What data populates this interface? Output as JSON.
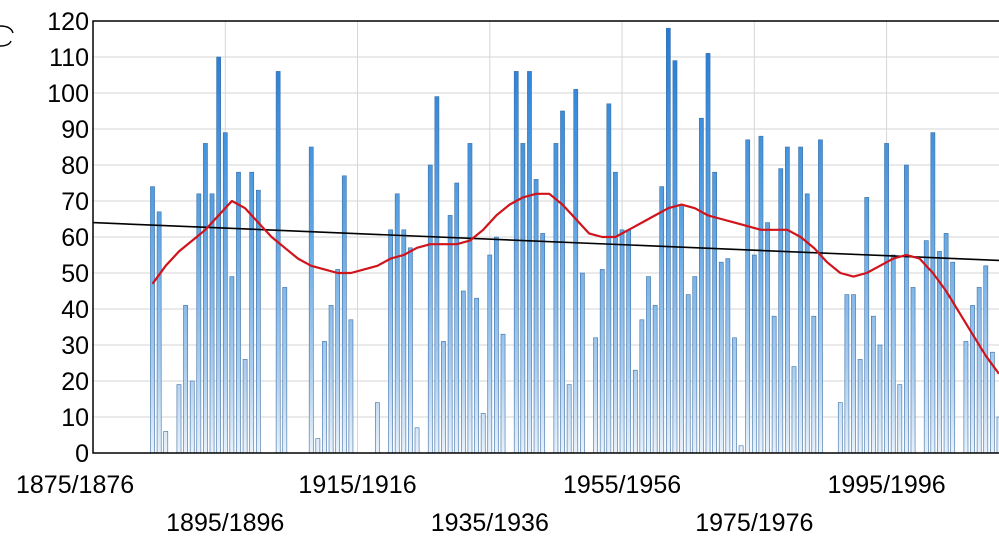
{
  "chart_data": {
    "type": "bar",
    "title": "",
    "xlabel": "",
    "ylabel": "",
    "ylim": [
      0,
      120
    ],
    "xlim": [
      1875,
      2012
    ],
    "grid": true,
    "yticks": [
      "0",
      "10",
      "20",
      "30",
      "40",
      "50",
      "60",
      "70",
      "80",
      "90",
      "100",
      "110",
      "120"
    ],
    "xticks": [
      {
        "year": 1875,
        "label": "1875/1876",
        "row": "upper"
      },
      {
        "year": 1895,
        "label": "1895/1896",
        "row": "lower"
      },
      {
        "year": 1915,
        "label": "1915/1916",
        "row": "upper"
      },
      {
        "year": 1935,
        "label": "1935/1936",
        "row": "lower"
      },
      {
        "year": 1955,
        "label": "1955/1956",
        "row": "upper"
      },
      {
        "year": 1975,
        "label": "1975/1976",
        "row": "lower"
      },
      {
        "year": 1995,
        "label": "1995/1996",
        "row": "upper"
      }
    ],
    "bars": {
      "start_season": 1884,
      "values": [
        74,
        67,
        6,
        0,
        19,
        41,
        20,
        72,
        86,
        72,
        110,
        89,
        49,
        78,
        26,
        78,
        73,
        0,
        0,
        106,
        46,
        0,
        0,
        0,
        85,
        4,
        31,
        41,
        51,
        77,
        37,
        0,
        0,
        0,
        14,
        0,
        62,
        72,
        62,
        57,
        7,
        0,
        80,
        99,
        31,
        66,
        75,
        45,
        86,
        43,
        11,
        55,
        60,
        33,
        0,
        106,
        86,
        106,
        76,
        61,
        0,
        86,
        95,
        19,
        101,
        50,
        0,
        32,
        51,
        97,
        78,
        62,
        62,
        23,
        37,
        49,
        41,
        74,
        118,
        109,
        69,
        44,
        49,
        93,
        111,
        78,
        53,
        54,
        32,
        2,
        87,
        55,
        88,
        64,
        38,
        79,
        85,
        24,
        85,
        72,
        38,
        87,
        0,
        0,
        14,
        44,
        44,
        26,
        71,
        38,
        30,
        86,
        55,
        19,
        80,
        46,
        0,
        59,
        89,
        56,
        61,
        53,
        0,
        31,
        41,
        46,
        52,
        28,
        10
      ]
    },
    "series": [
      {
        "type": "line",
        "color": "#d0141c",
        "x": [
          1884,
          1886,
          1888,
          1890,
          1892,
          1894,
          1896,
          1898,
          1900,
          1902,
          1904,
          1906,
          1908,
          1910,
          1912,
          1914,
          1916,
          1918,
          1920,
          1922,
          1924,
          1926,
          1928,
          1930,
          1932,
          1934,
          1936,
          1938,
          1940,
          1942,
          1944,
          1946,
          1948,
          1950,
          1952,
          1954,
          1956,
          1958,
          1960,
          1962,
          1964,
          1966,
          1968,
          1970,
          1972,
          1974,
          1976,
          1978,
          1980,
          1982,
          1984,
          1986,
          1988,
          1990,
          1992,
          1994,
          1996,
          1998,
          2000,
          2002,
          2004,
          2006,
          2008,
          2010,
          2012
        ],
        "values": [
          47,
          52,
          56,
          59,
          62,
          66,
          70,
          68,
          64,
          60,
          57,
          54,
          52,
          51,
          50,
          50,
          51,
          52,
          54,
          55,
          57,
          58,
          58,
          58,
          59,
          62,
          66,
          69,
          71,
          72,
          72,
          69,
          65,
          61,
          60,
          60,
          62,
          64,
          66,
          68,
          69,
          68,
          66,
          65,
          64,
          63,
          62,
          62,
          62,
          60,
          57,
          53,
          50,
          49,
          50,
          52,
          54,
          55,
          54,
          50,
          45,
          39,
          33,
          27,
          22
        ]
      },
      {
        "type": "line",
        "color": "#000000",
        "x": [
          1875,
          2012
        ],
        "values": [
          64,
          53.5
        ]
      }
    ]
  }
}
